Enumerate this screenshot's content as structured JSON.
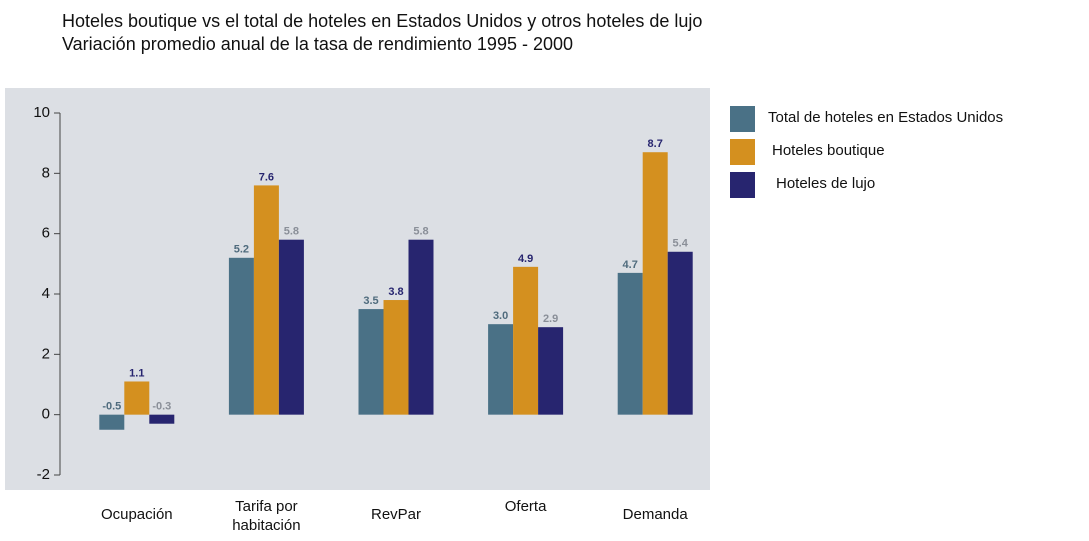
{
  "chart_data": {
    "type": "bar",
    "title": "Hoteles boutique vs el total de hoteles en Estados Unidos y otros hoteles de lujo",
    "subtitle": "Variación promedio anual de la tasa de rendimiento 1995 - 2000",
    "categories": [
      "Ocupación",
      "Tarifa por habitación",
      "RevPar",
      "Oferta",
      "Demanda"
    ],
    "series": [
      {
        "name": "Total de hoteles en Estados Unidos",
        "color": "#4a7186",
        "label_color": "#4f6b7d",
        "values": [
          -0.5,
          5.2,
          3.5,
          3.0,
          4.7
        ],
        "value_labels": [
          "-0.5",
          "5.2",
          "3.5",
          "3.0",
          "4.7"
        ]
      },
      {
        "name": "Hoteles boutique",
        "color": "#d4901f",
        "label_color": "#27256f",
        "values": [
          1.1,
          7.6,
          3.8,
          4.9,
          8.7
        ],
        "value_labels": [
          "1.1",
          "7.6",
          "3.8",
          "4.9",
          "8.7"
        ]
      },
      {
        "name": "Hoteles de lujo",
        "color": "#27256f",
        "label_color": "#8a8f98",
        "values": [
          -0.3,
          5.8,
          5.8,
          2.9,
          5.4
        ],
        "value_labels": [
          "-0.3",
          "5.8",
          "5.8",
          "2.9",
          "5.4"
        ]
      }
    ],
    "ylim": [
      -2,
      10
    ],
    "yticks": [
      -2,
      0,
      2,
      4,
      6,
      8,
      10
    ],
    "legend": "right"
  }
}
